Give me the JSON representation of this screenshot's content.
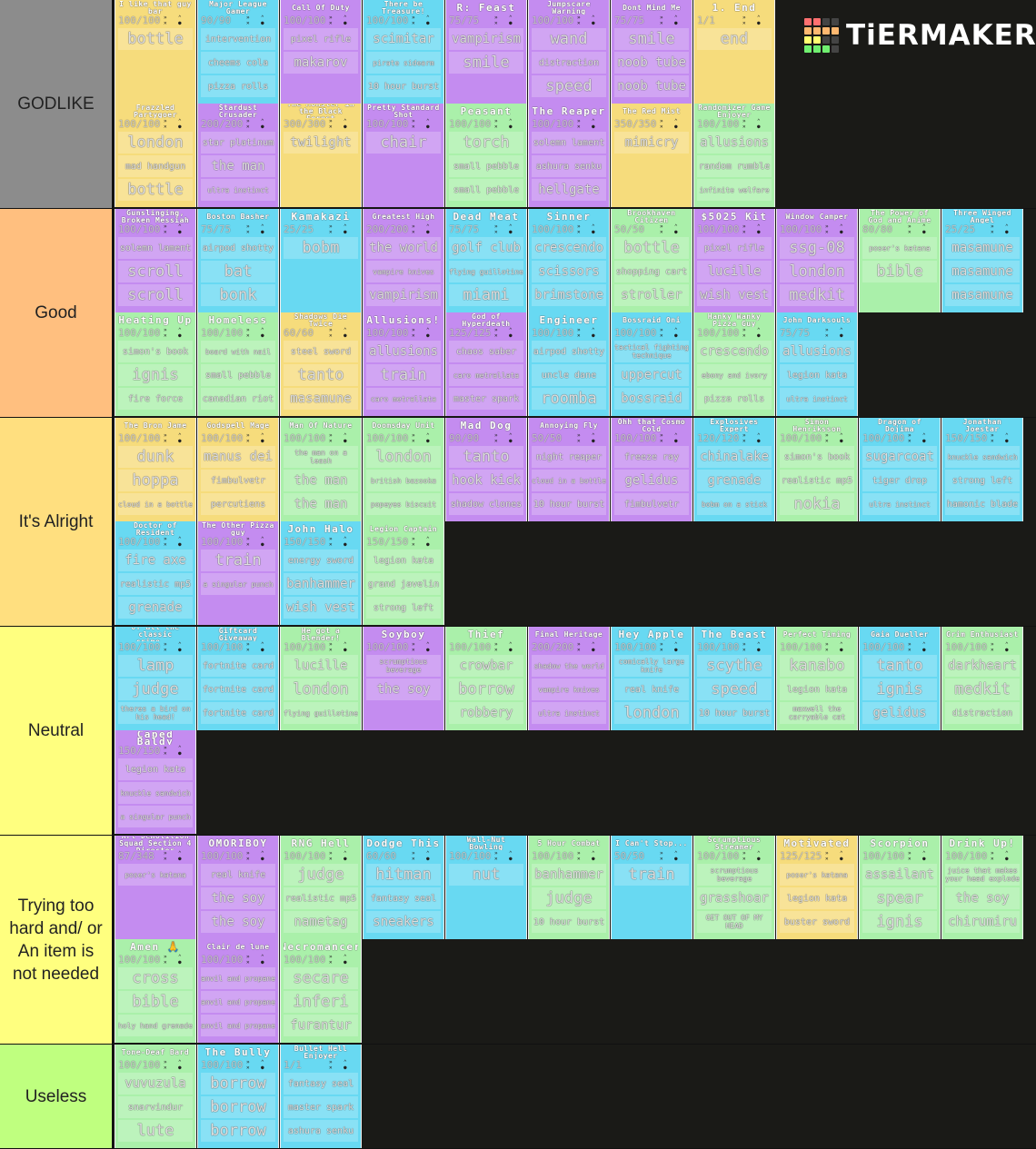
{
  "logo": {
    "text": "TiERMAKER",
    "grid_colors": [
      "#ff7070",
      "#ff7070",
      "#444",
      "#444",
      "#ffb870",
      "#ffb870",
      "#ffb870",
      "#ffb870",
      "#ffff70",
      "#ffff70",
      "#444",
      "#444",
      "#70f070",
      "#70f070",
      "#70f070",
      "#444"
    ]
  },
  "card_colors": {
    "y": "#f6dc7c",
    "p": "#c48cf0",
    "c": "#68d9f2",
    "g": "#aaf0aa"
  },
  "tiers": [
    {
      "label": "GODLIKE",
      "color": "#8c8c8c",
      "cards": [
        {
          "title": "I like that guy bar",
          "hp": "100/100",
          "color": "y",
          "items": [
            "bottle"
          ]
        },
        {
          "title": "Major League Gamer",
          "hp": "90/90",
          "color": "c",
          "items": [
            "intervention",
            "cheems cola",
            "pizza rolls"
          ]
        },
        {
          "title": "Call Of Duty",
          "hp": "100/100",
          "color": "p",
          "items": [
            "pixel rifle",
            "makarov"
          ]
        },
        {
          "title": "There be Treasure!",
          "hp": "100/100",
          "color": "c",
          "items": [
            "scimitar",
            "pirate sidearm",
            "10 hour burst"
          ]
        },
        {
          "title": "R: Feast",
          "hp": "75/75",
          "color": "p",
          "items": [
            "vampirism",
            "smile"
          ]
        },
        {
          "title": "Jumpscare Warning",
          "hp": "100/100",
          "color": "p",
          "items": [
            "wand",
            "distraction",
            "speed"
          ]
        },
        {
          "title": "Dont Mind Me",
          "hp": "75/75",
          "color": "p",
          "items": [
            "smile",
            "noob tube",
            "noob tube"
          ]
        },
        {
          "title": "1. End",
          "hp": "1/1",
          "color": "y",
          "items": [
            "end"
          ]
        },
        {
          "title": "Frazzled Partygoer",
          "hp": "100/100",
          "color": "y",
          "items": [
            "london",
            "mad handgun",
            "bottle"
          ]
        },
        {
          "title": "Stardust Crusader",
          "hp": "200/200",
          "color": "p",
          "items": [
            "star platinum",
            "the man",
            "ultra instinct"
          ]
        },
        {
          "title": "The Monster in the Black Forest",
          "hp": "300/300",
          "color": "y",
          "items": [
            "twilight"
          ]
        },
        {
          "title": "Pretty Standard Shot",
          "hp": "100/100",
          "color": "p",
          "items": [
            "chair"
          ]
        },
        {
          "title": "Peasant",
          "hp": "100/100",
          "color": "g",
          "items": [
            "torch",
            "small pebble",
            "small pebble"
          ]
        },
        {
          "title": "The Reaper",
          "hp": "100/100",
          "color": "p",
          "items": [
            "solemn lament",
            "ashura senku",
            "hellgate"
          ]
        },
        {
          "title": "The Red Mist",
          "hp": "350/350",
          "color": "y",
          "items": [
            "mimicry"
          ]
        },
        {
          "title": "Randomizer Game Enjoyer",
          "hp": "100/100",
          "color": "g",
          "items": [
            "allusions",
            "random rumble",
            "infinite welfare"
          ]
        }
      ]
    },
    {
      "label": "Good",
      "color": "#ffbf7f",
      "cards": [
        {
          "title": "Gunslinging, Broken Messiah",
          "hp": "100/100",
          "color": "p",
          "items": [
            "solemn lament",
            "scroll",
            "scroll"
          ]
        },
        {
          "title": "Boston Basher",
          "hp": "75/75",
          "color": "c",
          "items": [
            "airpod shotty",
            "bat",
            "bonk"
          ]
        },
        {
          "title": "Kamakazi",
          "hp": "25/25",
          "color": "c",
          "items": [
            "bobm"
          ]
        },
        {
          "title": "Greatest High",
          "hp": "200/200",
          "color": "p",
          "items": [
            "the world",
            "vampire knives",
            "vampirism"
          ]
        },
        {
          "title": "Dead Meat",
          "hp": "75/75",
          "color": "c",
          "items": [
            "golf club",
            "flying guillotine",
            "miami"
          ]
        },
        {
          "title": "Sinner",
          "hp": "100/100",
          "color": "c",
          "items": [
            "crescendo",
            "scissors",
            "brimstone"
          ]
        },
        {
          "title": "Brookhaven Citizen",
          "hp": "50/50",
          "color": "g",
          "items": [
            "bottle",
            "shopping cart",
            "stroller"
          ]
        },
        {
          "title": "$5025 Kit",
          "hp": "100/100",
          "color": "p",
          "items": [
            "pixel rifle",
            "lucille",
            "wish vest"
          ]
        },
        {
          "title": "Window Camper",
          "hp": "100/100",
          "color": "p",
          "items": [
            "ssg-08",
            "london",
            "medkit"
          ]
        },
        {
          "title": "The Power of God and Anime",
          "hp": "80/80",
          "color": "g",
          "items": [
            "poser's katana",
            "bible"
          ]
        },
        {
          "title": "Three Winged Angel",
          "hp": "25/25",
          "color": "c",
          "items": [
            "masamune",
            "masamune",
            "masamune"
          ]
        },
        {
          "title": "Heating Up",
          "hp": "100/100",
          "color": "g",
          "items": [
            "simon's book",
            "ignis",
            "fire force"
          ]
        },
        {
          "title": "Homeless",
          "hp": "100/100",
          "color": "g",
          "items": [
            "board with nail",
            "small pebble",
            "canadian riot"
          ]
        },
        {
          "title": "Shadows Die Twice",
          "hp": "60/60",
          "color": "y",
          "items": [
            "steel sword",
            "tanto",
            "masamune"
          ]
        },
        {
          "title": "Allusions!",
          "hp": "100/100",
          "color": "p",
          "items": [
            "allusions",
            "train",
            "caro metrallata"
          ]
        },
        {
          "title": "God of Hyperdeath",
          "hp": "125/125",
          "color": "p",
          "items": [
            "chaos saber",
            "caro metrallata",
            "master spark"
          ]
        },
        {
          "title": "Engineer",
          "hp": "100/100",
          "color": "c",
          "items": [
            "airpod shotty",
            "uncle dane",
            "roomba"
          ]
        },
        {
          "title": "Bossraid Oni",
          "hp": "100/100",
          "color": "c",
          "items": [
            "tactical fighting technique",
            "uppercut",
            "bossraid"
          ]
        },
        {
          "title": "Hanky Wanky Pizza Guy",
          "hp": "100/100",
          "color": "g",
          "items": [
            "crescendo",
            "ebony and ivory",
            "pizza rolls"
          ]
        },
        {
          "title": "John Darksouls",
          "hp": "75/75",
          "color": "c",
          "items": [
            "allusions",
            "legion kata",
            "ultra instinct"
          ]
        }
      ]
    },
    {
      "label": "It's Alright",
      "color": "#ffdf7f",
      "cards": [
        {
          "title": "The Bron Jame",
          "hp": "100/100",
          "color": "y",
          "items": [
            "dunk",
            "hoppa",
            "cloud in a bottle"
          ]
        },
        {
          "title": "Godspell Mage",
          "hp": "100/100",
          "color": "y",
          "items": [
            "manus dei",
            "fimbulvetr",
            "percutiens"
          ]
        },
        {
          "title": "Man Of Nature",
          "hp": "100/100",
          "color": "g",
          "items": [
            "the man on a leash",
            "the man",
            "the man"
          ]
        },
        {
          "title": "Doomsday Unit",
          "hp": "100/100",
          "color": "g",
          "items": [
            "london",
            "british bazooka",
            "popeyes biscuit"
          ]
        },
        {
          "title": "Mad Dog",
          "hp": "90/90",
          "color": "p",
          "items": [
            "tanto",
            "hook kick",
            "shadow clones"
          ]
        },
        {
          "title": "Annoying Fly",
          "hp": "50/50",
          "color": "p",
          "items": [
            "night reaper",
            "cloud in a bottle",
            "10 hour burst"
          ]
        },
        {
          "title": "Ohh that Cosmo Cold",
          "hp": "100/100",
          "color": "p",
          "items": [
            "freeze ray",
            "gelidus",
            "fimbulvetr"
          ]
        },
        {
          "title": "Explosives Expert",
          "hp": "120/120",
          "color": "c",
          "items": [
            "chinalake",
            "grenade",
            "bobm on a stick"
          ]
        },
        {
          "title": "Simon Henriksson",
          "hp": "100/100",
          "color": "g",
          "items": [
            "simon's book",
            "realistic mp5",
            "nokia"
          ]
        },
        {
          "title": "Dragon of Dojima",
          "hp": "100/100",
          "color": "c",
          "items": [
            "sugarcoat",
            "tiger drop",
            "ultra instinct"
          ]
        },
        {
          "title": "Jonathan Joestar",
          "hp": "150/150",
          "color": "c",
          "items": [
            "knuckle sandwich",
            "strong left",
            "hamonic blade"
          ]
        },
        {
          "title": "Doctor of Resident",
          "hp": "100/100",
          "color": "c",
          "items": [
            "fire axe",
            "realistic mp5",
            "grenade"
          ]
        },
        {
          "title": "The Other Pizza guy",
          "hp": "100/100",
          "color": "p",
          "items": [
            "train",
            "a singular punch"
          ]
        },
        {
          "title": "John Halo",
          "hp": "150/150",
          "color": "c",
          "items": [
            "energy sword",
            "banhammer",
            "wish vest"
          ]
        },
        {
          "title": "Legion Captain",
          "hp": "150/150",
          "color": "g",
          "items": [
            "legion kata",
            "grand javelin",
            "strong left"
          ]
        }
      ]
    },
    {
      "label": "Neutral",
      "color": "#ffff7f",
      "cards": [
        {
          "title": "of all the classic crime...",
          "hp": "100/100",
          "color": "c",
          "items": [
            "lamp",
            "judge",
            "theres a bird on his head!"
          ]
        },
        {
          "title": "Giftcard Giveaway",
          "hp": "100/100",
          "color": "c",
          "items": [
            "fortnite card",
            "fortnite card",
            "fortnite card"
          ]
        },
        {
          "title": "He got a Blender!",
          "hp": "100/100",
          "color": "g",
          "items": [
            "lucille",
            "london",
            "flying guillotine"
          ]
        },
        {
          "title": "Soyboy",
          "hp": "100/100",
          "color": "p",
          "items": [
            "scrumptious beverage",
            "the soy"
          ]
        },
        {
          "title": "Thief",
          "hp": "100/100",
          "color": "g",
          "items": [
            "crowbar",
            "borrow",
            "robbery"
          ]
        },
        {
          "title": "Final Heritage",
          "hp": "200/200",
          "color": "p",
          "items": [
            "shadow the world",
            "vampire knives",
            "ultra instinct"
          ]
        },
        {
          "title": "Hey Apple",
          "hp": "100/100",
          "color": "c",
          "items": [
            "comically large knife",
            "real knife",
            "london"
          ]
        },
        {
          "title": "The Beast",
          "hp": "100/100",
          "color": "c",
          "items": [
            "scythe",
            "speed",
            "10 hour burst"
          ]
        },
        {
          "title": "Perfect Timing",
          "hp": "100/100",
          "color": "g",
          "items": [
            "kanabo",
            "legion kata",
            "maxwell the carryable cat"
          ]
        },
        {
          "title": "Gaia Dueller",
          "hp": "100/100",
          "color": "c",
          "items": [
            "tanto",
            "ignis",
            "gelidus"
          ]
        },
        {
          "title": "Grim Enthusiast",
          "hp": "100/100",
          "color": "g",
          "items": [
            "darkheart",
            "medkit",
            "distraction"
          ]
        },
        {
          "title": "Caped Baldy",
          "hp": "150/150",
          "color": "p",
          "items": [
            "legion kata",
            "knuckle sandwich",
            "a singular punch"
          ]
        }
      ]
    },
    {
      "label": "Trying too hard and/ or An item is not needed",
      "color": "#ffff7f",
      "cards": [
        {
          "title": "Art Demolition Squad Section 4 Director",
          "hp": "87/348",
          "color": "p",
          "items": [
            "poser's katana"
          ]
        },
        {
          "title": "OMORIBOY",
          "hp": "100/100",
          "color": "p",
          "items": [
            "real knife",
            "the soy",
            "the soy"
          ]
        },
        {
          "title": "RNG Hell",
          "hp": "100/100",
          "color": "g",
          "items": [
            "judge",
            "realistic mp5",
            "nametag"
          ]
        },
        {
          "title": "Dodge This",
          "hp": "60/60",
          "color": "c",
          "items": [
            "hitman",
            "fantasy seal",
            "sneakers"
          ]
        },
        {
          "title": "Wall-Nut Bowling",
          "hp": "100/100",
          "color": "c",
          "items": [
            "nut"
          ]
        },
        {
          "title": "5 Hour Combat",
          "hp": "100/100",
          "color": "g",
          "items": [
            "banhammer",
            "judge",
            "10 hour burst"
          ]
        },
        {
          "title": "I Can't Stop...",
          "hp": "50/50",
          "color": "c",
          "items": [
            "train"
          ]
        },
        {
          "title": "Scrumptious Streamer",
          "hp": "100/100",
          "color": "g",
          "items": [
            "scrumptious beverage",
            "grasshoar",
            "GET OUT OF MY HEAD"
          ]
        },
        {
          "title": "Motivated",
          "hp": "125/125",
          "color": "y",
          "items": [
            "poser's katana",
            "legion kata",
            "buster sword"
          ]
        },
        {
          "title": "Scorpion",
          "hp": "100/100",
          "color": "g",
          "items": [
            "assailant",
            "spear",
            "ignis"
          ]
        },
        {
          "title": "Drink Up!",
          "hp": "100/100",
          "color": "g",
          "items": [
            "juice that makes your head explode",
            "the soy",
            "chirumiru"
          ]
        },
        {
          "title": "Amen 🙏",
          "hp": "100/100",
          "color": "g",
          "items": [
            "cross",
            "bible",
            "holy hand grenade"
          ]
        },
        {
          "title": "Clair de lune",
          "hp": "100/100",
          "color": "p",
          "items": [
            "anvil and propane",
            "anvil and propane",
            "anvil and propane"
          ]
        },
        {
          "title": "Necromancer",
          "hp": "100/100",
          "color": "g",
          "items": [
            "secare",
            "inferi",
            "furantur"
          ]
        }
      ]
    },
    {
      "label": "Useless",
      "color": "#bfff7f",
      "cards": [
        {
          "title": "Tone-Deaf Bard",
          "hp": "100/100",
          "color": "g",
          "items": [
            "vuvuzula",
            "snarvindur",
            "lute"
          ]
        },
        {
          "title": "The Bully",
          "hp": "100/100",
          "color": "c",
          "items": [
            "borrow",
            "borrow",
            "borrow"
          ]
        },
        {
          "title": "Bullet Hell Enjoyer",
          "hp": "1/1",
          "color": "c",
          "items": [
            "fantasy seal",
            "master spark",
            "ashura senku"
          ]
        }
      ]
    }
  ]
}
